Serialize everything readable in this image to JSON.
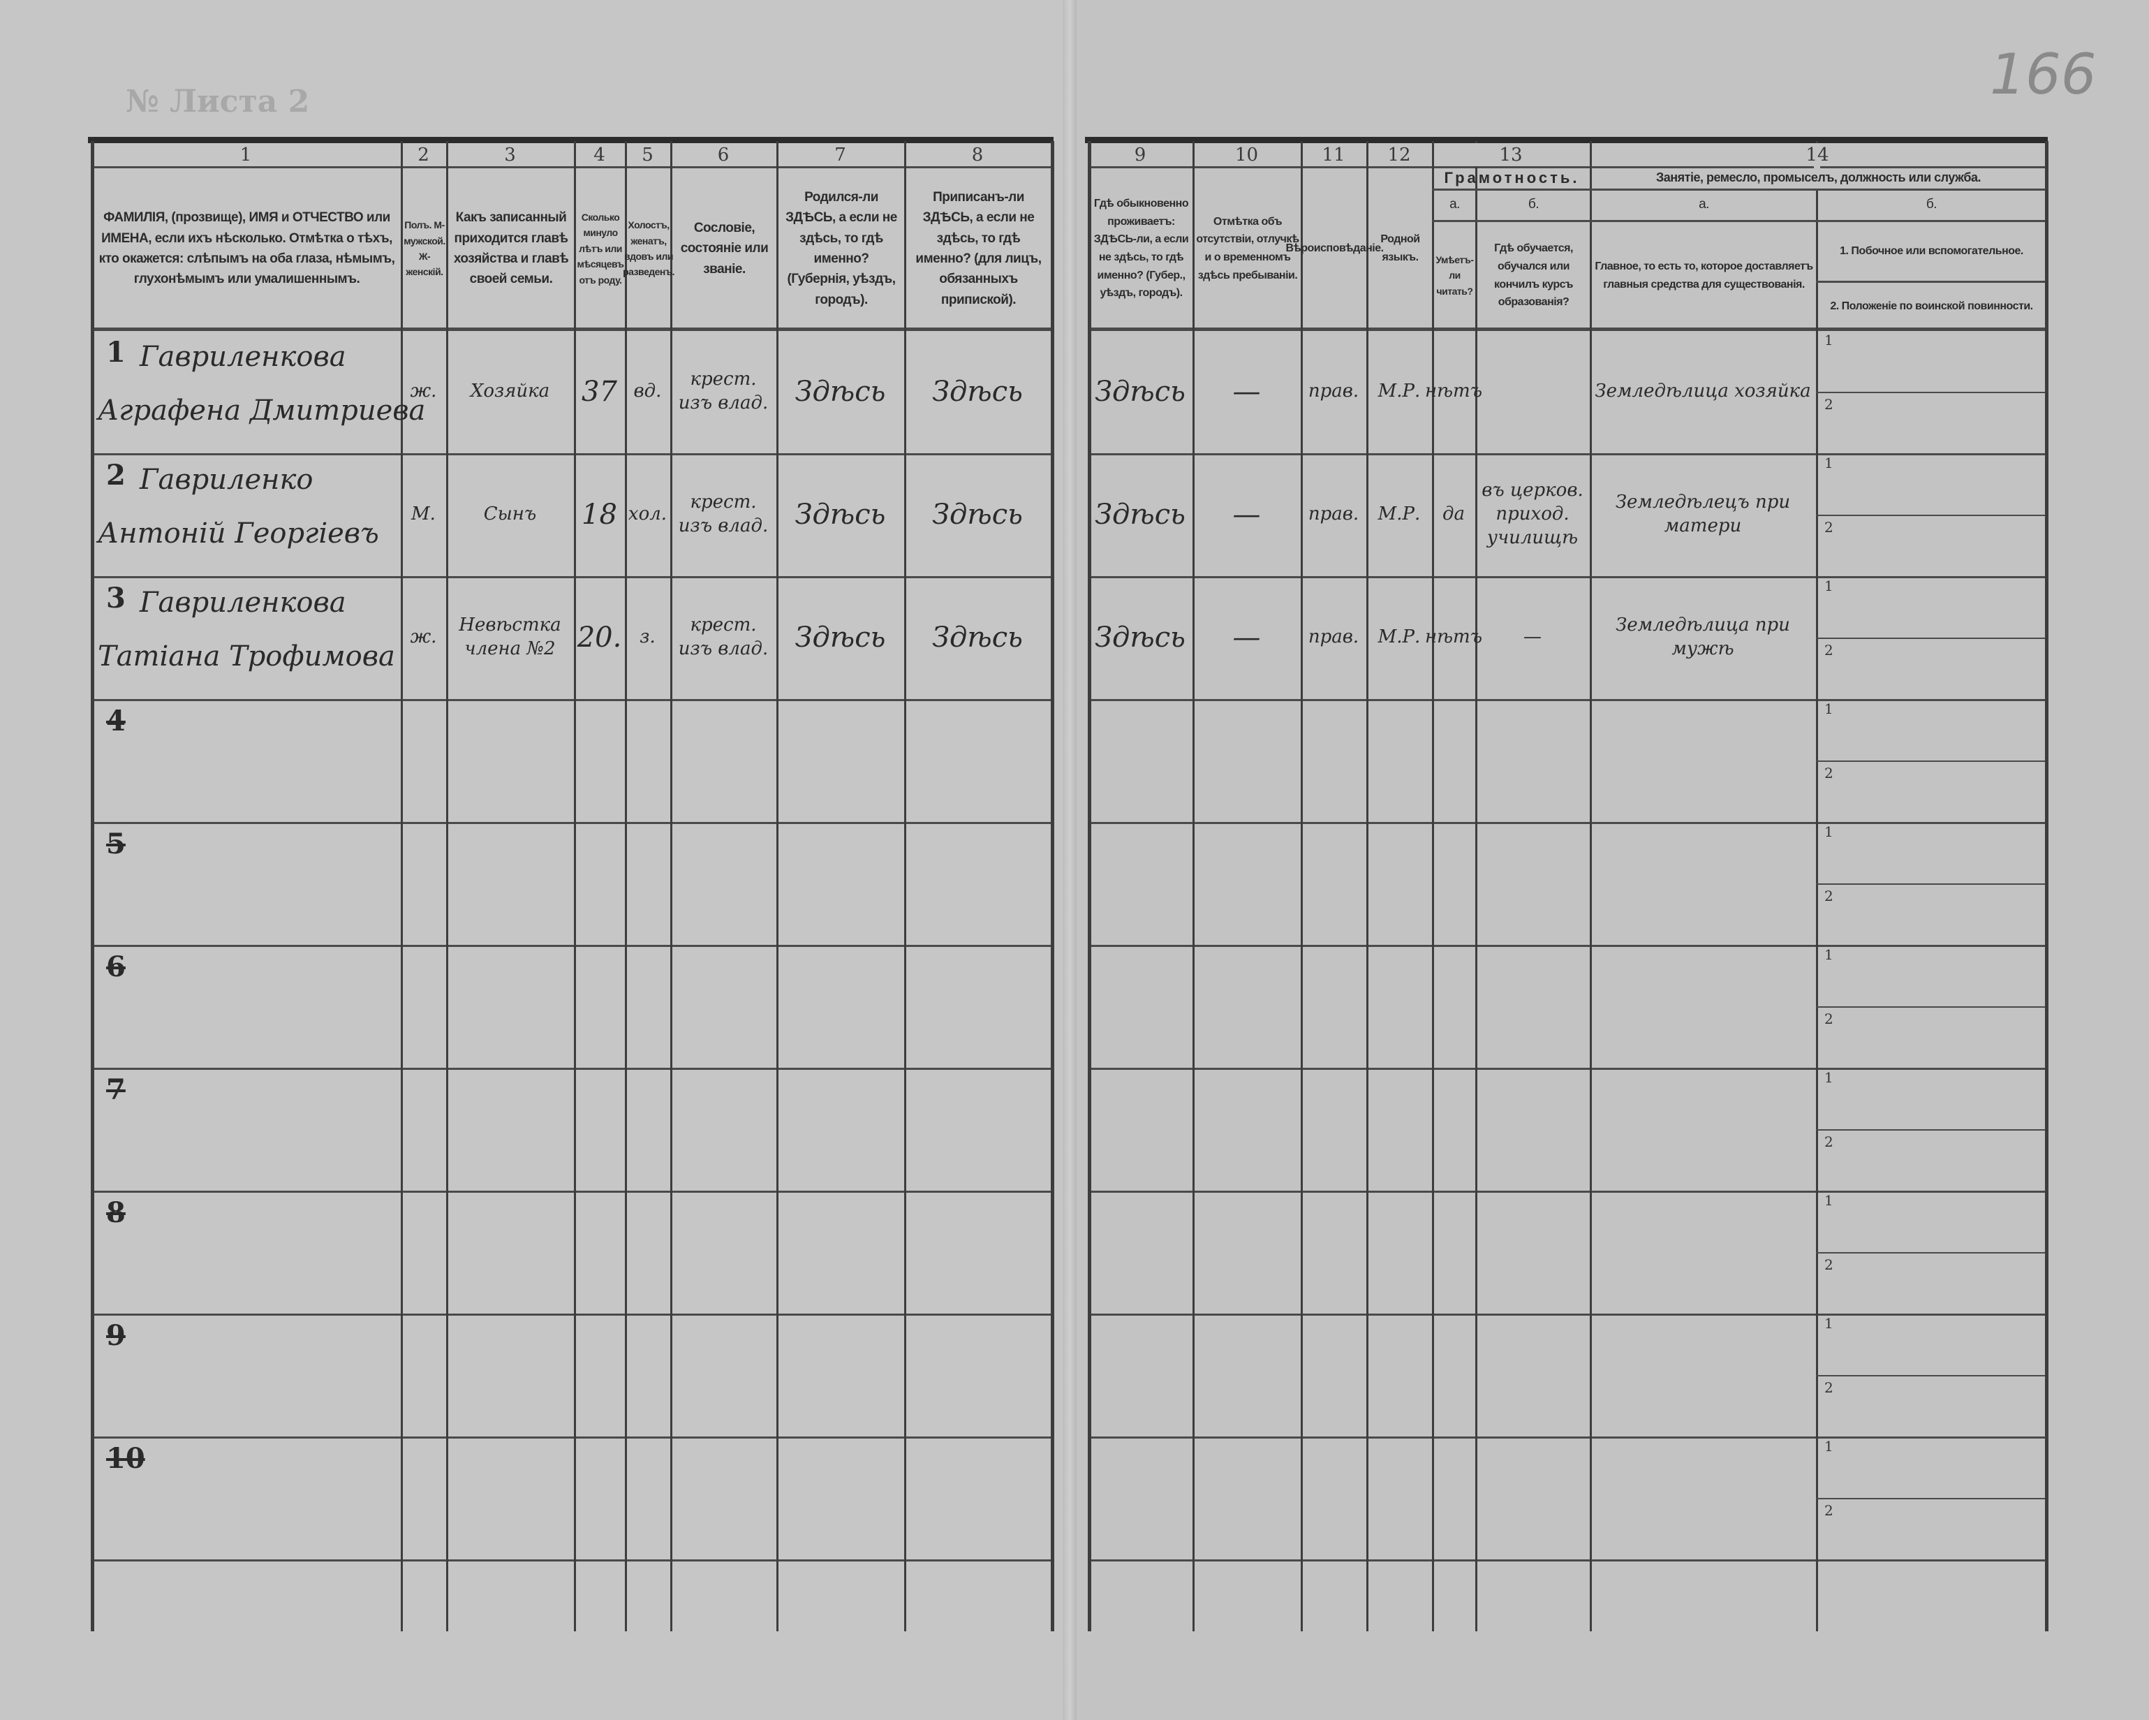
{
  "page_number": "166",
  "sheet_label": "№ Листа 2",
  "column_numbers": [
    "1",
    "2",
    "3",
    "4",
    "5",
    "6",
    "7",
    "8",
    "9",
    "10",
    "11",
    "12",
    "13",
    "14"
  ],
  "headers": {
    "c1": "ФАМИЛІЯ, (прозвище), ИМЯ и ОТЧЕСТВО или ИМЕНА, если ихъ нѣсколько. Отмѣтка о тѣхъ, кто окажется: слѣпымъ на оба глаза, нѣмымъ, глухонѣмымъ или умалишеннымъ.",
    "c2": "Полъ. М-мужской. Ж-женскій.",
    "c3": "Какъ записанный приходится главѣ хозяйства и главѣ своей семьи.",
    "c4": "Сколько минуло лѣтъ или мѣсяцевъ отъ роду.",
    "c5": "Холостъ, женатъ, вдовъ или разведенъ.",
    "c6": "Сословіе, состояніе или званіе.",
    "c7": "Родился-ли ЗДѢСЬ, а если не здѣсь, то гдѣ именно? (Губернія, уѣздъ, городъ).",
    "c8": "Приписанъ-ли ЗДѢСЬ, а если не здѣсь, то гдѣ именно? (для лицъ, обязанныхъ припиской).",
    "c9": "Гдѣ обыкновенно проживаетъ: ЗДѢСЬ-ли, а если не здѣсь, то гдѣ именно? (Губер., уѣздъ, городъ).",
    "c10": "Отмѣтка объ отсутствіи, отлучкѣ и о временномъ здѣсь пребываніи.",
    "c11": "Вѣроисповѣданіе.",
    "c12": "Родной языкъ.",
    "c13": "Грамотность.",
    "c13a_letter": "а.",
    "c13a": "Умѣетъ-ли читать?",
    "c13b_letter": "б.",
    "c13b": "Гдѣ обучается, обучался или кончилъ курсъ образованія?",
    "c14": "Занятіе, ремесло, промыселъ, должность или служба.",
    "c14a_letter": "а.",
    "c14a": "Главное, то есть то, которое доставляетъ главныя средства для существованія.",
    "c14b_letter": "б.",
    "c14b_1": "1. Побочное или вспомогательное.",
    "c14b_2": "2. Положеніе по воинской повинности."
  },
  "subrow_labels": [
    "1",
    "2"
  ],
  "rows": [
    {
      "num": "1",
      "crossed_out": false,
      "name1": "Гавриленкова",
      "name2": "Аграфена Дмитриева",
      "sex": "ж.",
      "relation": "Хозяйка",
      "age": "37",
      "marital": "вд.",
      "estate": "крест. изъ влад.",
      "birthplace": "Здѣсь",
      "registered": "Здѣсь",
      "residence": "Здѣсь",
      "absence": "—",
      "religion": "прав.",
      "language": "М.Р.",
      "literate": "нѣтъ",
      "occupation": "Земледѣлица хозяйка"
    },
    {
      "num": "2",
      "crossed_out": false,
      "name1": "Гавриленко",
      "name2": "Антоній Георгіевъ",
      "sex": "М.",
      "relation": "Сынъ",
      "age": "18",
      "marital": "хол.",
      "estate": "крест. изъ влад.",
      "birthplace": "Здѣсь",
      "registered": "Здѣсь",
      "residence": "Здѣсь",
      "absence": "—",
      "religion": "прав.",
      "language": "М.Р.",
      "literate": "да",
      "school": "въ церков. приход. училищѣ",
      "occupation": "Земледѣлецъ при матери"
    },
    {
      "num": "3",
      "crossed_out": false,
      "name1": "Гавриленкова",
      "name2": "Татіана Трофимова",
      "sex": "ж.",
      "relation": "Невѣстка члена №2",
      "age": "20.",
      "marital": "з.",
      "estate": "крест. изъ влад.",
      "birthplace": "Здѣсь",
      "registered": "Здѣсь",
      "residence": "Здѣсь",
      "absence": "—",
      "religion": "прав.",
      "language": "М.Р.",
      "literate": "нѣтъ",
      "school": "—",
      "occupation": "Земледѣлица при мужѣ"
    },
    {
      "num": "4",
      "crossed_out": true
    },
    {
      "num": "5",
      "crossed_out": true
    },
    {
      "num": "6",
      "crossed_out": true
    },
    {
      "num": "7",
      "crossed_out": true
    },
    {
      "num": "8",
      "crossed_out": true
    },
    {
      "num": "9",
      "crossed_out": true
    },
    {
      "num": "10",
      "crossed_out": true
    }
  ]
}
